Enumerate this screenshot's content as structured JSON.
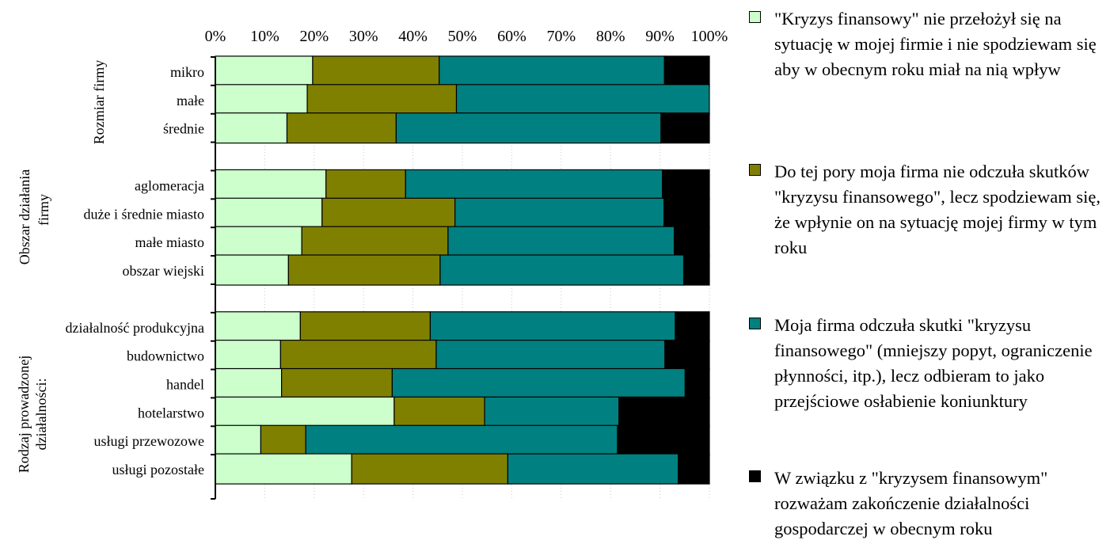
{
  "chart_data": {
    "type": "bar",
    "orientation": "horizontal",
    "stacked": "percent",
    "xlim": [
      0,
      100
    ],
    "xticks": [
      "0%",
      "10%",
      "20%",
      "30%",
      "40%",
      "50%",
      "60%",
      "70%",
      "80%",
      "90%",
      "100%"
    ],
    "grid": true,
    "legend_position": "right",
    "groups": [
      {
        "label": "Rozmiar firmy",
        "categories": [
          "mikro",
          "małe",
          "średnie"
        ]
      },
      {
        "label": "Obszar działania firmy",
        "categories": [
          "aglomeracja",
          "duże i średnie miasto",
          "małe miasto",
          "obszar wiejski"
        ]
      },
      {
        "label": "Rodzaj prowadzonej działalności:",
        "categories": [
          "działalność produkcyjna",
          "budownictwo",
          "handel ",
          "hotelarstwo",
          "usługi przewozowe",
          "usługi pozostałe"
        ]
      }
    ],
    "series": [
      {
        "name": "\"Kryzys finansowy\" nie przełożył się na sytuację w mojej firmie i nie spodziewam się aby w obecnym roku miał na nią wpływ",
        "color": "#ccffcc",
        "values": [
          19.7,
          18.6,
          14.5,
          22.4,
          21.6,
          17.5,
          14.8,
          17.2,
          13.2,
          13.4,
          36.2,
          9.2,
          27.6
        ]
      },
      {
        "name": "Do tej pory moja firma nie odczuła skutków \"kryzysu finansowego\", lecz spodziewam się, że wpłynie on na sytuację mojej firmy w tym roku",
        "color": "#808000",
        "values": [
          25.6,
          30.2,
          22.1,
          16.1,
          26.9,
          29.6,
          30.7,
          26.3,
          31.5,
          22.4,
          18.3,
          9.1,
          31.6
        ]
      },
      {
        "name": "Moja firma odczuła skutki \"kryzysu finansowego\" (mniejszy popyt, ograniczenie płynności, itp.), lecz odbieram to jako przejściowe osłabienie koniunktury",
        "color": "#008080",
        "values": [
          45.6,
          51.2,
          53.6,
          52.0,
          42.3,
          45.8,
          49.3,
          49.6,
          46.3,
          59.3,
          27.2,
          63.1,
          34.5
        ]
      },
      {
        "name": "W związku z \"kryzysem finansowym\" rozważam zakończenie działalności gospodarczej w obecnym roku",
        "color": "#000000",
        "values": [
          9.1,
          0.0,
          9.8,
          9.5,
          9.2,
          7.1,
          5.2,
          6.9,
          9.0,
          4.9,
          18.3,
          18.6,
          6.3
        ]
      }
    ]
  }
}
